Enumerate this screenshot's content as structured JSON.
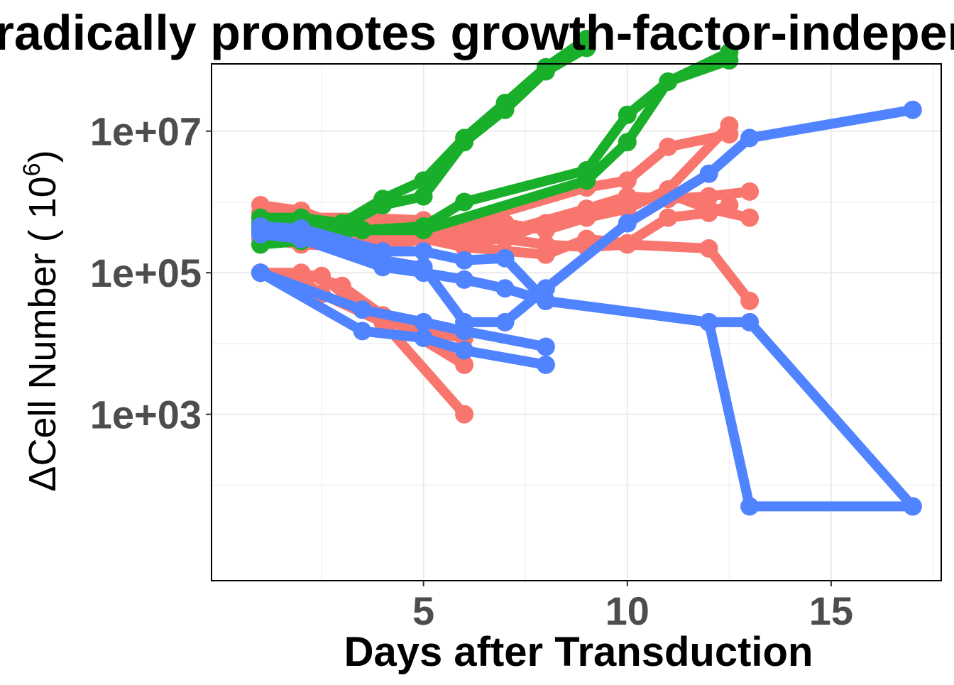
{
  "chart_data": {
    "type": "line",
    "title": "Sporadically promotes growth-factor-independence",
    "xlabel": "Days after Transduction",
    "ylabel": "ΔCell Number ( 10",
    "ylabel_sup": "6",
    "ylabel_close": ")",
    "x_ticks": [
      5,
      10,
      15
    ],
    "y_ticks": [
      {
        "value": 1000,
        "label": "1e+03"
      },
      {
        "value": 100000,
        "label": "1e+05"
      },
      {
        "value": 10000000,
        "label": "1e+07"
      }
    ],
    "xlim": [
      -0.2,
      17.7
    ],
    "ylim_log10": [
      0.65,
      7.95
    ],
    "log_scale_y": true,
    "grid": true,
    "colors": {
      "red": "#F8766D",
      "green": "#1AAF2A",
      "blue": "#5083FF"
    },
    "series": [
      {
        "color": "red",
        "points": [
          [
            1,
            900000
          ],
          [
            2,
            750000
          ],
          [
            3,
            450000
          ],
          [
            4,
            400000
          ],
          [
            6,
            230000
          ],
          [
            8,
            180000
          ],
          [
            9,
            300000
          ],
          [
            10,
            260000
          ],
          [
            11,
            600000
          ],
          [
            12,
            700000
          ],
          [
            12.5,
            900000
          ]
        ]
      },
      {
        "color": "red",
        "points": [
          [
            1,
            700000
          ],
          [
            2,
            600000
          ],
          [
            3.5,
            600000
          ],
          [
            5,
            550000
          ],
          [
            6,
            280000
          ],
          [
            7,
            300000
          ],
          [
            8,
            500000
          ],
          [
            9,
            700000
          ],
          [
            10,
            1000000
          ],
          [
            11,
            1300000
          ],
          [
            12,
            800000
          ],
          [
            13,
            600000
          ]
        ]
      },
      {
        "color": "red",
        "points": [
          [
            1,
            500000
          ],
          [
            2,
            500000
          ],
          [
            4,
            450000
          ],
          [
            5,
            400000
          ],
          [
            6,
            350000
          ],
          [
            7,
            380000
          ],
          [
            9,
            800000
          ],
          [
            10,
            1200000
          ],
          [
            11,
            1100000
          ],
          [
            12,
            1200000
          ],
          [
            13,
            1400000
          ]
        ]
      },
      {
        "color": "red",
        "points": [
          [
            1,
            400000
          ],
          [
            2,
            350000
          ],
          [
            3,
            300000
          ],
          [
            5,
            300000
          ],
          [
            6,
            400000
          ],
          [
            7,
            300000
          ],
          [
            8,
            250000
          ],
          [
            9,
            230000
          ],
          [
            10,
            250000
          ],
          [
            12,
            220000
          ],
          [
            13,
            40000
          ]
        ]
      },
      {
        "color": "red",
        "points": [
          [
            1,
            300000
          ],
          [
            2,
            250000
          ],
          [
            4,
            230000
          ],
          [
            5,
            300000
          ],
          [
            6,
            500000
          ],
          [
            9,
            1600000
          ],
          [
            10,
            2000000
          ],
          [
            11,
            6000000
          ],
          [
            12.5,
            9000000
          ]
        ]
      },
      {
        "color": "red",
        "points": [
          [
            1,
            100000
          ],
          [
            2,
            100000
          ],
          [
            3,
            65000
          ],
          [
            4,
            25000
          ],
          [
            6,
            5000
          ]
        ]
      },
      {
        "color": "red",
        "points": [
          [
            1,
            100000
          ],
          [
            2,
            80000
          ],
          [
            2.5,
            50000
          ],
          [
            4,
            20000
          ],
          [
            6,
            1000
          ]
        ]
      },
      {
        "color": "red",
        "points": [
          [
            1,
            100000
          ],
          [
            2.5,
            90000
          ],
          [
            3.5,
            30000
          ],
          [
            5,
            15000
          ],
          [
            6,
            12000
          ]
        ]
      },
      {
        "color": "red",
        "points": [
          [
            5,
            350000
          ],
          [
            6,
            450000
          ],
          [
            7,
            500000
          ],
          [
            8,
            400000
          ],
          [
            9,
            600000
          ],
          [
            10,
            800000
          ],
          [
            11,
            1500000
          ],
          [
            12.5,
            12000000
          ]
        ]
      },
      {
        "color": "green",
        "points": [
          [
            1,
            600000
          ],
          [
            2,
            600000
          ],
          [
            3,
            500000
          ],
          [
            4,
            1100000
          ],
          [
            5,
            2000000
          ],
          [
            6,
            8000000
          ],
          [
            7,
            25000000
          ],
          [
            8,
            80000000
          ],
          [
            9,
            200000000
          ]
        ]
      },
      {
        "color": "green",
        "points": [
          [
            1,
            500000
          ],
          [
            2,
            500000
          ],
          [
            3,
            450000
          ],
          [
            4,
            900000
          ],
          [
            5,
            1200000
          ],
          [
            6,
            7000000
          ],
          [
            7,
            20000000
          ],
          [
            8,
            70000000
          ],
          [
            9,
            150000000
          ]
        ]
      },
      {
        "color": "green",
        "points": [
          [
            1,
            400000
          ],
          [
            2,
            400000
          ],
          [
            3.5,
            400000
          ],
          [
            5,
            450000
          ],
          [
            6,
            1000000
          ],
          [
            9,
            2800000
          ],
          [
            10,
            17000000
          ],
          [
            11,
            50000000
          ],
          [
            12.5,
            130000000
          ]
        ]
      },
      {
        "color": "green",
        "points": [
          [
            1,
            250000
          ],
          [
            2,
            280000
          ],
          [
            3.5,
            400000
          ],
          [
            5,
            400000
          ],
          [
            9,
            2000000
          ],
          [
            10,
            7000000
          ],
          [
            11,
            50000000
          ],
          [
            12.5,
            100000000
          ]
        ]
      },
      {
        "color": "blue",
        "points": [
          [
            1,
            450000
          ],
          [
            2,
            420000
          ],
          [
            4,
            200000
          ],
          [
            5,
            200000
          ],
          [
            6,
            150000
          ],
          [
            7,
            160000
          ],
          [
            8,
            40000
          ],
          [
            12,
            20000
          ],
          [
            13,
            20000
          ],
          [
            17,
            50
          ]
        ]
      },
      {
        "color": "blue",
        "points": [
          [
            1,
            400000
          ],
          [
            2,
            350000
          ],
          [
            4,
            150000
          ],
          [
            5,
            120000
          ],
          [
            6,
            20000
          ],
          [
            7,
            20000
          ],
          [
            8,
            60000
          ],
          [
            10,
            500000
          ],
          [
            12,
            2500000
          ],
          [
            13,
            8000000
          ],
          [
            17,
            20000000
          ]
        ]
      },
      {
        "color": "blue",
        "points": [
          [
            1,
            350000
          ],
          [
            2,
            300000
          ],
          [
            4,
            120000
          ],
          [
            5,
            100000
          ],
          [
            6,
            80000
          ],
          [
            7,
            60000
          ],
          [
            8,
            40000
          ],
          [
            12,
            20000
          ],
          [
            13,
            50
          ],
          [
            17,
            50
          ]
        ]
      },
      {
        "color": "blue",
        "points": [
          [
            1,
            100000
          ],
          [
            3.5,
            30000
          ],
          [
            5,
            20000
          ],
          [
            6,
            15000
          ],
          [
            8,
            9000
          ]
        ]
      },
      {
        "color": "blue",
        "points": [
          [
            1,
            100000
          ],
          [
            3.5,
            15000
          ],
          [
            5,
            12000
          ],
          [
            6,
            8000
          ],
          [
            8,
            5000
          ]
        ]
      }
    ]
  }
}
